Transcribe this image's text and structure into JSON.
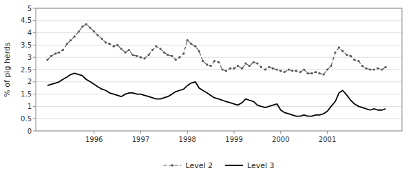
{
  "chart_data": {
    "type": "line",
    "ylabel": "% of pig herds",
    "x": [
      1995.0,
      1995.08,
      1995.17,
      1995.25,
      1995.33,
      1995.42,
      1995.5,
      1995.58,
      1995.67,
      1995.75,
      1995.83,
      1995.92,
      1996.0,
      1996.08,
      1996.17,
      1996.25,
      1996.33,
      1996.42,
      1996.5,
      1996.58,
      1996.67,
      1996.75,
      1996.83,
      1996.92,
      1997.0,
      1997.08,
      1997.17,
      1997.25,
      1997.33,
      1997.42,
      1997.5,
      1997.58,
      1997.67,
      1997.75,
      1997.83,
      1997.92,
      1998.0,
      1998.08,
      1998.17,
      1998.25,
      1998.33,
      1998.42,
      1998.5,
      1998.58,
      1998.67,
      1998.75,
      1998.83,
      1998.92,
      1999.0,
      1999.08,
      1999.17,
      1999.25,
      1999.33,
      1999.42,
      1999.5,
      1999.58,
      1999.67,
      1999.75,
      1999.83,
      1999.92,
      2000.0,
      2000.08,
      2000.17,
      2000.25,
      2000.33,
      2000.42,
      2000.5,
      2000.58,
      2000.67,
      2000.75,
      2000.83,
      2000.92,
      2001.0,
      2001.08,
      2001.17,
      2001.25,
      2001.33,
      2001.42,
      2001.5,
      2001.58,
      2001.67,
      2001.75,
      2001.83,
      2001.92,
      2002.0,
      2002.08,
      2002.17,
      2002.25
    ],
    "series": [
      {
        "name": "Level 2",
        "color": "#555555",
        "line_style": "dashed",
        "marker": "dot",
        "values": [
          2.9,
          3.05,
          3.15,
          3.2,
          3.3,
          3.55,
          3.7,
          3.85,
          4.05,
          4.25,
          4.35,
          4.2,
          4.05,
          3.9,
          3.75,
          3.6,
          3.55,
          3.45,
          3.5,
          3.35,
          3.2,
          3.3,
          3.1,
          3.05,
          3.0,
          2.95,
          3.1,
          3.3,
          3.45,
          3.35,
          3.2,
          3.1,
          3.05,
          2.9,
          3.0,
          3.15,
          3.7,
          3.55,
          3.45,
          3.25,
          2.85,
          2.7,
          2.65,
          2.85,
          2.8,
          2.5,
          2.45,
          2.55,
          2.55,
          2.65,
          2.55,
          2.75,
          2.65,
          2.8,
          2.75,
          2.6,
          2.5,
          2.6,
          2.55,
          2.5,
          2.45,
          2.4,
          2.5,
          2.45,
          2.45,
          2.4,
          2.5,
          2.35,
          2.35,
          2.4,
          2.35,
          2.3,
          2.5,
          2.65,
          3.2,
          3.4,
          3.25,
          3.1,
          3.05,
          2.9,
          2.85,
          2.65,
          2.55,
          2.5,
          2.5,
          2.55,
          2.5,
          2.6
        ]
      },
      {
        "name": "Level 3",
        "color": "#000000",
        "line_style": "solid",
        "values": [
          1.85,
          1.9,
          1.95,
          2.0,
          2.1,
          2.2,
          2.3,
          2.35,
          2.3,
          2.25,
          2.1,
          2.0,
          1.9,
          1.8,
          1.7,
          1.65,
          1.55,
          1.5,
          1.45,
          1.4,
          1.5,
          1.55,
          1.55,
          1.5,
          1.5,
          1.45,
          1.4,
          1.35,
          1.3,
          1.3,
          1.35,
          1.4,
          1.5,
          1.6,
          1.65,
          1.7,
          1.85,
          1.95,
          2.0,
          1.75,
          1.65,
          1.55,
          1.45,
          1.35,
          1.3,
          1.25,
          1.2,
          1.15,
          1.1,
          1.05,
          1.15,
          1.3,
          1.25,
          1.2,
          1.05,
          1.0,
          0.95,
          1.0,
          1.05,
          1.1,
          0.85,
          0.75,
          0.7,
          0.65,
          0.6,
          0.6,
          0.65,
          0.6,
          0.6,
          0.65,
          0.65,
          0.7,
          0.8,
          1.0,
          1.2,
          1.55,
          1.65,
          1.45,
          1.25,
          1.1,
          1.0,
          0.95,
          0.9,
          0.85,
          0.9,
          0.85,
          0.85,
          0.9
        ]
      }
    ],
    "xlim": [
      1994.75,
      2002.6
    ],
    "xticks": [
      1996,
      1997,
      1998,
      1999,
      2000,
      2001
    ],
    "ylim": [
      0,
      5
    ],
    "yticks": [
      0,
      0.5,
      1,
      1.5,
      2,
      2.5,
      3,
      3.5,
      4,
      4.5,
      5
    ],
    "grid": true,
    "legend": "bottom"
  }
}
